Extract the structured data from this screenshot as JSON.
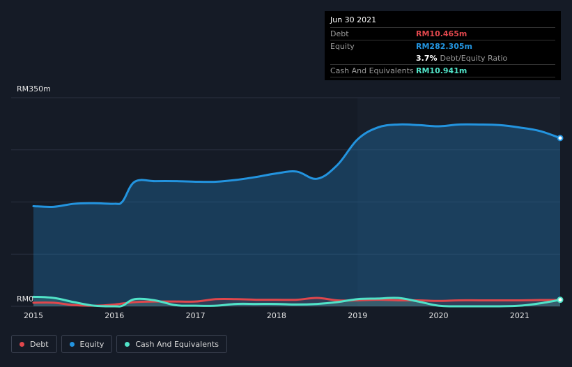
{
  "tooltip": {
    "date": "Jun 30 2021",
    "debt_label": "Debt",
    "debt_value": "RM10.465m",
    "equity_label": "Equity",
    "equity_value": "RM282.305m",
    "ratio_value": "3.7%",
    "ratio_label": "Debt/Equity Ratio",
    "cash_label": "Cash And Equivalents",
    "cash_value": "RM10.941m"
  },
  "legend": {
    "debt": "Debt",
    "equity": "Equity",
    "cash": "Cash And Equivalents"
  },
  "colors": {
    "debt": "#e0474c",
    "equity": "#2394df",
    "cash": "#51e3c8",
    "background": "#151b26",
    "plot_highlight": "#181f2b"
  },
  "chart_data": {
    "type": "area",
    "title": "",
    "xlabel": "",
    "ylabel": "",
    "ylim": [
      0,
      350
    ],
    "xlim": [
      2015,
      2021.5
    ],
    "y_ticks": [
      {
        "value": 350,
        "label": "RM350m"
      },
      {
        "value": 0,
        "label": "RM0"
      }
    ],
    "x_ticks": [
      {
        "value": 2015,
        "label": "2015"
      },
      {
        "value": 2016,
        "label": "2016"
      },
      {
        "value": 2017,
        "label": "2017"
      },
      {
        "value": 2018,
        "label": "2018"
      },
      {
        "value": 2019,
        "label": "2019"
      },
      {
        "value": 2020,
        "label": "2020"
      },
      {
        "value": 2021,
        "label": "2021"
      }
    ],
    "series": [
      {
        "name": "Equity",
        "key": "equity",
        "points": [
          [
            2015.0,
            168
          ],
          [
            2015.25,
            167
          ],
          [
            2015.5,
            172
          ],
          [
            2015.75,
            173
          ],
          [
            2016.0,
            172
          ],
          [
            2016.1,
            176
          ],
          [
            2016.25,
            209
          ],
          [
            2016.5,
            210
          ],
          [
            2016.75,
            210
          ],
          [
            2017.0,
            209
          ],
          [
            2017.25,
            209
          ],
          [
            2017.5,
            212
          ],
          [
            2017.75,
            217
          ],
          [
            2018.0,
            223
          ],
          [
            2018.25,
            226
          ],
          [
            2018.5,
            214
          ],
          [
            2018.75,
            237
          ],
          [
            2019.0,
            280
          ],
          [
            2019.25,
            300
          ],
          [
            2019.5,
            305
          ],
          [
            2019.75,
            304
          ],
          [
            2020.0,
            302
          ],
          [
            2020.25,
            305
          ],
          [
            2020.5,
            305
          ],
          [
            2020.75,
            304
          ],
          [
            2021.0,
            300
          ],
          [
            2021.25,
            294
          ],
          [
            2021.5,
            282.305
          ]
        ]
      },
      {
        "name": "Debt",
        "key": "debt",
        "points": [
          [
            2015.0,
            6
          ],
          [
            2015.25,
            6
          ],
          [
            2015.5,
            2
          ],
          [
            2015.75,
            1
          ],
          [
            2016.0,
            3
          ],
          [
            2016.25,
            7
          ],
          [
            2016.5,
            8
          ],
          [
            2016.75,
            8
          ],
          [
            2017.0,
            8
          ],
          [
            2017.25,
            12
          ],
          [
            2017.5,
            12
          ],
          [
            2017.75,
            11
          ],
          [
            2018.0,
            11
          ],
          [
            2018.25,
            11
          ],
          [
            2018.5,
            14
          ],
          [
            2018.75,
            10
          ],
          [
            2019.0,
            10
          ],
          [
            2019.25,
            11
          ],
          [
            2019.5,
            10
          ],
          [
            2019.75,
            10
          ],
          [
            2020.0,
            9
          ],
          [
            2020.25,
            10
          ],
          [
            2020.5,
            10
          ],
          [
            2020.75,
            10
          ],
          [
            2021.0,
            10
          ],
          [
            2021.25,
            10.5
          ],
          [
            2021.5,
            10.465
          ]
        ]
      },
      {
        "name": "Cash And Equivalents",
        "key": "cash",
        "points": [
          [
            2015.0,
            16
          ],
          [
            2015.25,
            14
          ],
          [
            2015.5,
            7
          ],
          [
            2015.75,
            1
          ],
          [
            2016.0,
            0
          ],
          [
            2016.1,
            1
          ],
          [
            2016.25,
            12
          ],
          [
            2016.5,
            10
          ],
          [
            2016.75,
            2
          ],
          [
            2017.0,
            1
          ],
          [
            2017.25,
            1
          ],
          [
            2017.5,
            4
          ],
          [
            2017.75,
            4
          ],
          [
            2018.0,
            4
          ],
          [
            2018.25,
            3
          ],
          [
            2018.5,
            4
          ],
          [
            2018.75,
            7
          ],
          [
            2019.0,
            12
          ],
          [
            2019.25,
            13
          ],
          [
            2019.5,
            14
          ],
          [
            2019.75,
            8
          ],
          [
            2020.0,
            1
          ],
          [
            2020.25,
            0
          ],
          [
            2020.5,
            0
          ],
          [
            2020.75,
            0
          ],
          [
            2021.0,
            1
          ],
          [
            2021.25,
            5
          ],
          [
            2021.5,
            10.941
          ]
        ]
      }
    ]
  }
}
